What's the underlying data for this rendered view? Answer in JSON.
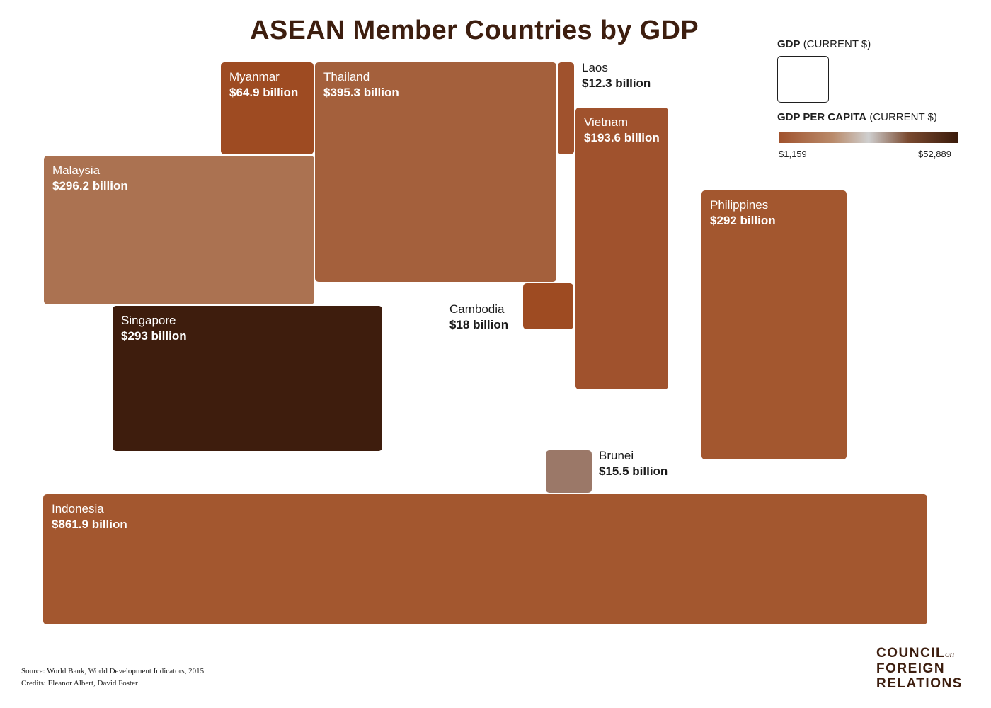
{
  "chart_data": {
    "type": "cartogram",
    "title": "ASEAN Member Countries by GDP",
    "legend": {
      "size_label_bold": "GDP",
      "size_label_rest": "(CURRENT $)",
      "color_label_bold": "GDP PER CAPITA",
      "color_label_rest": "(CURRENT $)",
      "color_min_label": "$1,159",
      "color_max_label": "$52,889",
      "color_min": 1159,
      "color_max": 52889
    },
    "units": "billion USD",
    "series": [
      {
        "name": "Myanmar",
        "value": 64.9,
        "value_label": "$64.9 billion",
        "color": "#9e4b22"
      },
      {
        "name": "Thailand",
        "value": 395.3,
        "value_label": "$395.3 billion",
        "color": "#a4603c"
      },
      {
        "name": "Laos",
        "value": 12.3,
        "value_label": "$12.3 billion",
        "color": "#a0522d"
      },
      {
        "name": "Vietnam",
        "value": 193.6,
        "value_label": "$193.6 billion",
        "color": "#a0522d"
      },
      {
        "name": "Malaysia",
        "value": 296.2,
        "value_label": "$296.2 billion",
        "color": "#ab7251"
      },
      {
        "name": "Philippines",
        "value": 292,
        "value_label": "$292 billion",
        "color": "#a3572f"
      },
      {
        "name": "Cambodia",
        "value": 18,
        "value_label": "$18 billion",
        "color": "#9e4b22"
      },
      {
        "name": "Singapore",
        "value": 293,
        "value_label": "$293 billion",
        "color": "#3e1d0d"
      },
      {
        "name": "Brunei",
        "value": 15.5,
        "value_label": "$15.5 billion",
        "color": "#9b7868"
      },
      {
        "name": "Indonesia",
        "value": 861.9,
        "value_label": "$861.9 billion",
        "color": "#a3572f"
      }
    ]
  },
  "source": "Source: World Bank, World Development Indicators, 2015",
  "credits": "Credits: Eleanor Albert, David Foster",
  "logo": {
    "line1": "COUNCIL",
    "on": "on",
    "line2": "FOREIGN",
    "line3": "RELATIONS"
  }
}
